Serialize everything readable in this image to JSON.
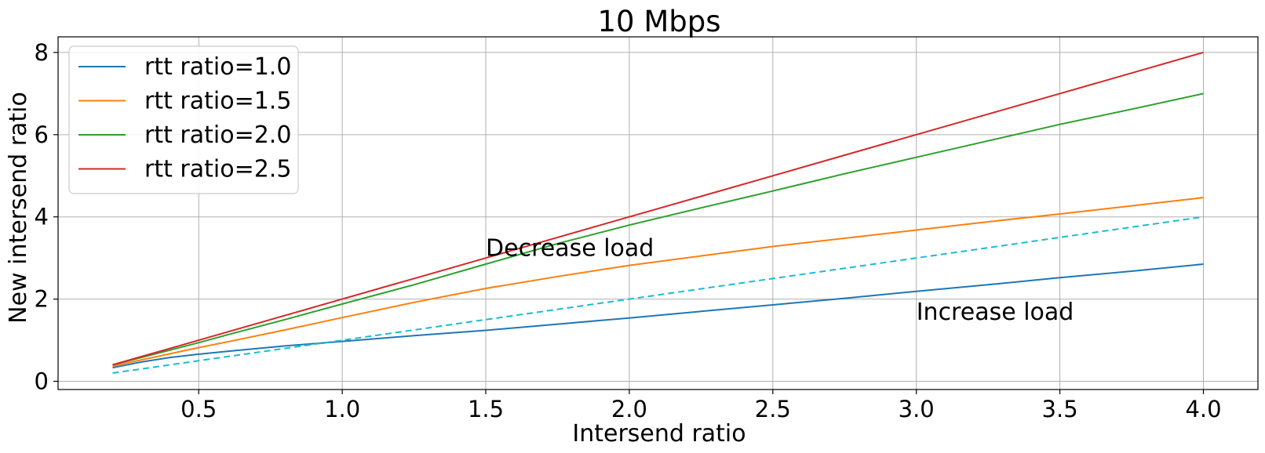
{
  "chart_data": {
    "type": "line",
    "title": "10 Mbps",
    "xlabel": "Intersend ratio",
    "ylabel": "New intersend ratio",
    "xlim": [
      0.01,
      4.19
    ],
    "ylim": [
      -0.2,
      8.38
    ],
    "xticks": [
      0.5,
      1.0,
      1.5,
      2.0,
      2.5,
      3.0,
      3.5,
      4.0
    ],
    "xtick_labels": [
      "0.5",
      "1.0",
      "1.5",
      "2.0",
      "2.5",
      "3.0",
      "3.5",
      "4.0"
    ],
    "yticks": [
      0,
      2,
      4,
      6,
      8
    ],
    "ytick_labels": [
      "0",
      "2",
      "4",
      "6",
      "8"
    ],
    "grid": true,
    "legend_position": "top-left",
    "x": [
      0.2,
      0.3,
      0.4,
      0.5,
      0.6,
      0.8,
      1.0,
      1.25,
      1.5,
      1.75,
      2.0,
      2.25,
      2.5,
      2.75,
      3.0,
      3.25,
      3.5,
      3.75,
      4.0
    ],
    "series": [
      {
        "name": "rtt ratio=1.0",
        "color": "#1f77b4",
        "dash": "solid",
        "values": [
          0.33,
          0.47,
          0.58,
          0.66,
          0.73,
          0.86,
          0.97,
          1.11,
          1.24,
          1.39,
          1.54,
          1.7,
          1.86,
          2.02,
          2.19,
          2.35,
          2.52,
          2.68,
          2.85
        ]
      },
      {
        "name": "rtt ratio=1.5",
        "color": "#ff7f0e",
        "dash": "solid",
        "values": [
          0.37,
          0.52,
          0.67,
          0.82,
          0.96,
          1.25,
          1.55,
          1.92,
          2.26,
          2.55,
          2.82,
          3.05,
          3.28,
          3.48,
          3.68,
          3.88,
          4.07,
          4.27,
          4.47
        ]
      },
      {
        "name": "rtt ratio=2.0",
        "color": "#2ca02c",
        "dash": "solid",
        "values": [
          0.4,
          0.58,
          0.76,
          0.94,
          1.13,
          1.5,
          1.88,
          2.35,
          2.85,
          3.35,
          3.8,
          4.22,
          4.63,
          5.05,
          5.45,
          5.85,
          6.25,
          6.62,
          7.0
        ]
      },
      {
        "name": "rtt ratio=2.5",
        "color": "#d62728",
        "dash": "solid",
        "values": [
          0.4,
          0.6,
          0.8,
          1.0,
          1.2,
          1.6,
          2.0,
          2.5,
          3.0,
          3.5,
          4.0,
          4.5,
          5.0,
          5.5,
          6.0,
          6.5,
          7.0,
          7.5,
          8.0
        ]
      },
      {
        "color": "#17becf",
        "dash": "dashed",
        "values": [
          0.2,
          0.3,
          0.4,
          0.5,
          0.6,
          0.8,
          1.0,
          1.25,
          1.5,
          1.75,
          2.0,
          2.25,
          2.5,
          2.75,
          3.0,
          3.25,
          3.5,
          3.75,
          4.0
        ]
      }
    ],
    "annotations": [
      {
        "text": "Decrease load",
        "x": 1.5,
        "y": 3.05
      },
      {
        "text": "Increase load",
        "x": 3.0,
        "y": 1.5
      }
    ]
  }
}
